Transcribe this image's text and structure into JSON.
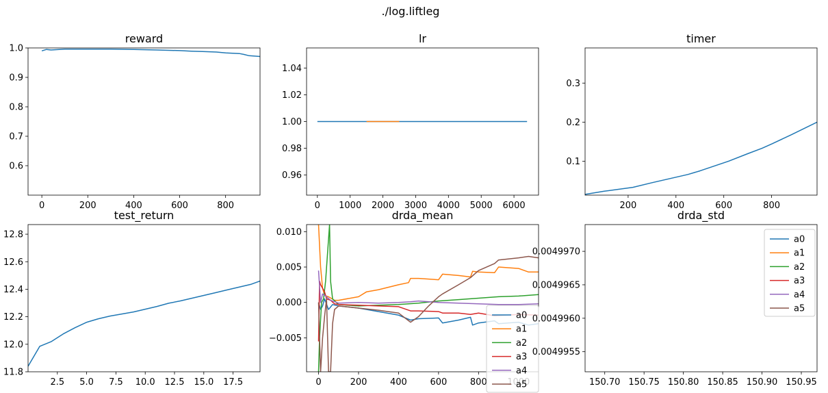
{
  "figure": {
    "suptitle": "./log.liftleg"
  },
  "colors": {
    "a0": "#1f77b4",
    "a1": "#ff7f0e",
    "a2": "#2ca02c",
    "a3": "#d62728",
    "a4": "#9467bd",
    "a5": "#8c564b"
  },
  "chart_data": [
    {
      "id": "reward",
      "type": "line",
      "title": "reward",
      "xlim": [
        -60,
        950
      ],
      "ylim": [
        0.5,
        1.0
      ],
      "xticks": [
        0,
        200,
        400,
        600,
        800
      ],
      "xtick_labels": [
        "0",
        "200",
        "400",
        "600",
        "800"
      ],
      "yticks": [
        0.6,
        0.7,
        0.8,
        0.9,
        1.0
      ],
      "ytick_labels": [
        "0.6",
        "0.7",
        "0.8",
        "0.9",
        "1.0"
      ],
      "series": [
        {
          "color": "#1f77b4",
          "x": [
            0,
            20,
            40,
            100,
            200,
            300,
            400,
            500,
            600,
            650,
            700,
            760,
            800,
            860,
            880,
            900,
            950
          ],
          "y": [
            0.99,
            0.995,
            0.993,
            0.996,
            0.996,
            0.996,
            0.995,
            0.993,
            0.991,
            0.989,
            0.988,
            0.986,
            0.983,
            0.981,
            0.978,
            0.974,
            0.971
          ]
        }
      ]
    },
    {
      "id": "lr",
      "type": "line",
      "title": "lr",
      "xlim": [
        -330,
        6750
      ],
      "ylim": [
        0.945,
        1.055
      ],
      "xticks": [
        0,
        1000,
        2000,
        3000,
        4000,
        5000,
        6000
      ],
      "xtick_labels": [
        "0",
        "1000",
        "2000",
        "3000",
        "4000",
        "5000",
        "6000"
      ],
      "yticks": [
        0.96,
        0.98,
        1.0,
        1.02,
        1.04
      ],
      "ytick_labels": [
        "0.96",
        "0.98",
        "1.00",
        "1.02",
        "1.04"
      ],
      "series": [
        {
          "color": "#1f77b4",
          "x": [
            0,
            6400
          ],
          "y": [
            1.0,
            1.0
          ]
        },
        {
          "color": "#ff7f0e",
          "x": [
            1500,
            2000,
            2500
          ],
          "y": [
            1.0,
            1.0,
            1.0
          ]
        }
      ]
    },
    {
      "id": "timer",
      "type": "line",
      "title": "timer",
      "xlim": [
        20,
        990
      ],
      "ylim": [
        0.013,
        0.39
      ],
      "xticks": [
        200,
        400,
        600,
        800
      ],
      "xtick_labels": [
        "200",
        "400",
        "600",
        "800"
      ],
      "yticks": [
        0.1,
        0.2,
        0.3
      ],
      "ytick_labels": [
        "0.1",
        "0.2",
        "0.3"
      ],
      "series": [
        {
          "color": "#1f77b4",
          "x": [
            20,
            100,
            220,
            300,
            450,
            500,
            620,
            700,
            760,
            800,
            880,
            990
          ],
          "y": [
            0.015,
            0.023,
            0.033,
            0.045,
            0.066,
            0.075,
            0.1,
            0.119,
            0.133,
            0.144,
            0.167,
            0.2
          ]
        }
      ]
    },
    {
      "id": "test_return",
      "type": "line",
      "title": "test_return",
      "xlim": [
        0,
        19.8
      ],
      "ylim": [
        11.8,
        12.87
      ],
      "xticks": [
        2.5,
        5,
        7.5,
        10,
        12.5,
        15,
        17.5
      ],
      "xtick_labels": [
        "2.5",
        "5.0",
        "7.5",
        "10.0",
        "12.5",
        "15.0",
        "17.5"
      ],
      "yticks": [
        11.8,
        12.0,
        12.2,
        12.4,
        12.6,
        12.8
      ],
      "ytick_labels": [
        "11.8",
        "12.0",
        "12.2",
        "12.4",
        "12.6",
        "12.8"
      ],
      "series": [
        {
          "color": "#1f77b4",
          "x": [
            0,
            1,
            2,
            3,
            4,
            5,
            6,
            7,
            8,
            9,
            10,
            11,
            12,
            13,
            14,
            15,
            16,
            17,
            18,
            19,
            19.8
          ],
          "y": [
            11.84,
            11.985,
            12.02,
            12.075,
            12.12,
            12.16,
            12.185,
            12.205,
            12.22,
            12.235,
            12.255,
            12.275,
            12.298,
            12.315,
            12.335,
            12.355,
            12.375,
            12.395,
            12.415,
            12.435,
            12.46
          ]
        }
      ]
    },
    {
      "id": "drda_mean",
      "type": "line",
      "title": "drda_mean",
      "xlim": [
        -60,
        1100
      ],
      "ylim": [
        -0.0098,
        0.011
      ],
      "xticks": [
        0,
        200,
        400,
        600,
        800,
        1000
      ],
      "xtick_labels": [
        "0",
        "200",
        "400",
        "600",
        "800",
        "1000"
      ],
      "yticks": [
        -0.005,
        0.0,
        0.005,
        0.01
      ],
      "ytick_labels": [
        "−0.005",
        "0.000",
        "0.005",
        "0.010"
      ],
      "legend": {
        "loc": "lower-right",
        "entries": [
          "a0",
          "a1",
          "a2",
          "a3",
          "a4",
          "a5"
        ]
      },
      "series": [
        {
          "name": "a0",
          "color": "#1f77b4",
          "x": [
            0,
            10,
            20,
            30,
            50,
            70,
            100,
            200,
            300,
            400,
            460,
            500,
            600,
            620,
            700,
            760,
            770,
            800,
            880,
            900,
            1000,
            1050,
            1100
          ],
          "y": [
            0.0,
            -0.001,
            -0.0005,
            0.0005,
            -0.001,
            -0.0003,
            -0.0005,
            -0.0008,
            -0.0013,
            -0.0018,
            -0.0025,
            -0.0023,
            -0.0022,
            -0.0029,
            -0.0025,
            -0.0021,
            -0.0032,
            -0.0029,
            -0.0026,
            -0.003,
            -0.0028,
            -0.0032,
            -0.003
          ]
        },
        {
          "name": "a1",
          "color": "#ff7f0e",
          "x": [
            0,
            10,
            20,
            30,
            50,
            80,
            100,
            200,
            240,
            300,
            400,
            450,
            460,
            500,
            600,
            620,
            700,
            760,
            770,
            800,
            880,
            900,
            1000,
            1050,
            1100
          ],
          "y": [
            0.011,
            0.005,
            0.002,
            0.001,
            0.0008,
            0.0003,
            0.0003,
            0.0008,
            0.0015,
            0.0018,
            0.0025,
            0.0028,
            0.0034,
            0.0034,
            0.0032,
            0.004,
            0.0038,
            0.0036,
            0.0044,
            0.0043,
            0.0042,
            0.005,
            0.0048,
            0.0043,
            0.0043
          ]
        },
        {
          "name": "a2",
          "color": "#2ca02c",
          "x": [
            0,
            5,
            15,
            25,
            35,
            45,
            55,
            60,
            70,
            100,
            200,
            300,
            400,
            500,
            600,
            700,
            800,
            900,
            1000,
            1100
          ],
          "y": [
            -0.0098,
            -0.005,
            0.0,
            0.0005,
            0.003,
            0.007,
            0.011,
            0.003,
            0.0005,
            -0.0003,
            -0.0005,
            -0.0004,
            -0.0003,
            -0.0001,
            0.0002,
            0.0004,
            0.0006,
            0.0008,
            0.0009,
            0.0011
          ]
        },
        {
          "name": "a3",
          "color": "#d62728",
          "x": [
            0,
            5,
            10,
            20,
            30,
            40,
            60,
            80,
            100,
            200,
            300,
            400,
            460,
            500,
            600,
            620,
            700,
            760,
            800,
            880,
            1000,
            1100
          ],
          "y": [
            -0.0055,
            0.003,
            0.0025,
            0.002,
            0.0015,
            0.0005,
            0.0003,
            -0.0002,
            -0.0003,
            -0.0004,
            -0.0005,
            -0.0006,
            -0.0012,
            -0.0012,
            -0.0013,
            -0.0015,
            -0.0015,
            -0.0017,
            -0.0015,
            -0.0019,
            -0.0017,
            -0.0018
          ]
        },
        {
          "name": "a4",
          "color": "#9467bd",
          "x": [
            0,
            10,
            20,
            40,
            60,
            100,
            200,
            300,
            400,
            460,
            500,
            600,
            700,
            800,
            900,
            1000,
            1100
          ],
          "y": [
            0.0045,
            0.0,
            0.0012,
            0.0008,
            0.0003,
            -0.0001,
            0.0,
            -0.0001,
            0.0,
            0.0001,
            0.0002,
            0.0,
            -0.0001,
            -0.0002,
            -0.0003,
            -0.0003,
            -0.0002
          ]
        },
        {
          "name": "a5",
          "color": "#8c564b",
          "x": [
            0,
            10,
            20,
            30,
            40,
            50,
            60,
            70,
            80,
            100,
            200,
            300,
            400,
            460,
            500,
            550,
            600,
            620,
            700,
            760,
            800,
            880,
            900,
            1000,
            1050,
            1100
          ],
          "y": [
            0.0,
            -0.0098,
            -0.005,
            -0.002,
            0.0005,
            -0.0098,
            -0.0098,
            -0.003,
            -0.001,
            -0.0005,
            -0.0008,
            -0.0011,
            -0.0015,
            -0.0028,
            -0.002,
            -0.0005,
            0.0008,
            0.0012,
            0.0025,
            0.0035,
            0.0045,
            0.0055,
            0.006,
            0.0063,
            0.0065,
            0.0063
          ]
        }
      ]
    },
    {
      "id": "drda_std",
      "type": "line",
      "title": "drda_std",
      "xlim": [
        150.675,
        150.97
      ],
      "ylim": [
        0.0049952,
        0.0049974
      ],
      "xticks": [
        150.7,
        150.75,
        150.8,
        150.85,
        150.9,
        150.95
      ],
      "xtick_labels": [
        "150.70",
        "150.75",
        "150.80",
        "150.85",
        "150.90",
        "150.95"
      ],
      "yticks": [
        0.0049955,
        0.004996,
        0.0049965,
        0.004997
      ],
      "ytick_labels": [
        "0.0049955",
        "0.0049960",
        "0.0049965",
        "0.0049970"
      ],
      "legend": {
        "loc": "upper-right",
        "entries": [
          "a0",
          "a1",
          "a2",
          "a3",
          "a4",
          "a5"
        ]
      },
      "series": []
    }
  ]
}
